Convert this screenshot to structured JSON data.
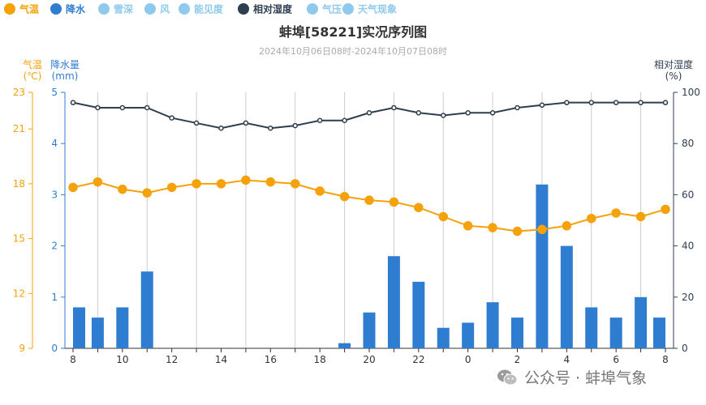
{
  "legend": [
    {
      "label": "气温",
      "color": "#f5a20a",
      "icon": "circle-icon"
    },
    {
      "label": "降水",
      "color": "#2f7dd1",
      "icon": "circle-icon"
    },
    {
      "label": "雪深",
      "color": "#8ec9ee",
      "icon": "circle-icon"
    },
    {
      "label": "风",
      "color": "#8ec9ee",
      "icon": "circle-icon"
    },
    {
      "label": "能见度",
      "color": "#8ec9ee",
      "icon": "circle-icon"
    },
    {
      "label": "相对湿度",
      "color": "#2c3e50",
      "icon": "circle-icon"
    },
    {
      "label": "气压",
      "color": "#8ec9ee",
      "icon": "circle-icon"
    },
    {
      "label": "天气现象",
      "color": "#8ec9ee",
      "icon": "circle-icon"
    }
  ],
  "colors": {
    "temperature": "#f5a20a",
    "precip": "#2f7dd1",
    "humidity": "#2c3e50",
    "grid": "#cccccc"
  },
  "watermark": {
    "text": "公众号 · 蚌埠气象",
    "icon": "wechat-icon"
  },
  "chart_data": {
    "type": "bar",
    "title": "蚌埠[58221]实况序列图",
    "subtitle": "2024年10月06日08时-2024年10月07日08时",
    "x": [
      "8",
      "9",
      "10",
      "11",
      "12",
      "13",
      "14",
      "15",
      "16",
      "17",
      "18",
      "19",
      "20",
      "21",
      "22",
      "23",
      "0",
      "1",
      "2",
      "3",
      "4",
      "5",
      "6",
      "7",
      "8"
    ],
    "x_tick_labels": [
      "8",
      "",
      "10",
      "",
      "12",
      "",
      "14",
      "",
      "16",
      "",
      "18",
      "",
      "20",
      "",
      "22",
      "",
      "0",
      "",
      "2",
      "",
      "4",
      "",
      "6",
      "",
      "8"
    ],
    "axes": {
      "temperature": {
        "name_line1": "气温",
        "name_line2": "(℃)",
        "ticks": [
          "9",
          "12",
          "15",
          "18",
          "21",
          "23"
        ],
        "ylim": [
          9,
          23
        ]
      },
      "precip": {
        "name_line1": "降水量",
        "name_line2": "(mm)",
        "ticks": [
          "0",
          "1",
          "2",
          "3",
          "4",
          "5"
        ],
        "ylim": [
          0,
          5
        ]
      },
      "humidity": {
        "name_line1": "相对湿度",
        "name_line2": "(%)",
        "ticks": [
          "0",
          "20",
          "40",
          "60",
          "80",
          "100"
        ],
        "ylim": [
          0,
          100
        ]
      }
    },
    "grid": "vertical",
    "series": [
      {
        "name": "气温",
        "type": "line",
        "axis": "temperature",
        "values": [
          17.8,
          18.1,
          17.7,
          17.5,
          17.8,
          18.0,
          18.0,
          18.2,
          18.1,
          18.0,
          17.6,
          17.3,
          17.1,
          17.0,
          16.7,
          16.2,
          15.7,
          15.6,
          15.4,
          15.5,
          15.7,
          16.1,
          16.4,
          16.2,
          16.6
        ]
      },
      {
        "name": "降水",
        "type": "bar",
        "axis": "precip",
        "values": [
          0.8,
          0.6,
          0.8,
          1.5,
          0,
          0,
          0,
          0,
          0,
          0,
          0,
          0.1,
          0.7,
          1.8,
          1.3,
          0.4,
          0.5,
          0.9,
          0.6,
          3.2,
          2.0,
          0.8,
          0.6,
          1.0,
          0.6
        ]
      },
      {
        "name": "相对湿度",
        "type": "line",
        "axis": "humidity",
        "values": [
          96,
          94,
          94,
          94,
          90,
          88,
          86,
          88,
          86,
          87,
          89,
          89,
          92,
          94,
          92,
          91,
          92,
          92,
          94,
          95,
          96,
          96,
          96,
          96,
          96
        ]
      }
    ]
  }
}
